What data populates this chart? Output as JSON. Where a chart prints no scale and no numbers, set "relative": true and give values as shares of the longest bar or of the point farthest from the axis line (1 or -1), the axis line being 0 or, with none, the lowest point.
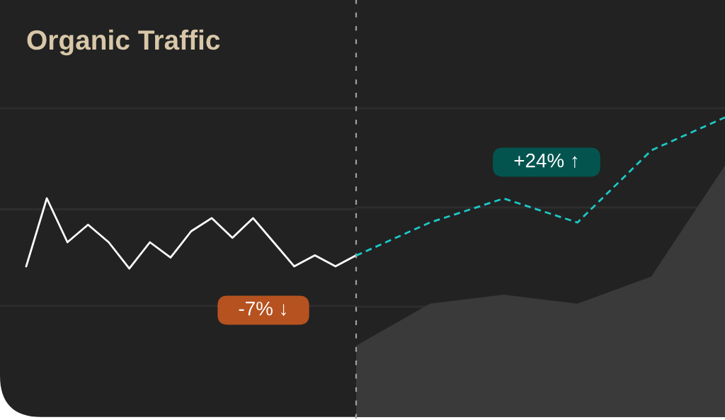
{
  "chart_data": [
    {
      "type": "line",
      "title": "Organic Traffic",
      "relative": true,
      "categories": [
        null,
        null,
        null,
        null,
        null,
        null,
        null,
        null,
        null,
        null,
        null,
        null,
        null,
        null,
        null,
        null,
        null
      ],
      "series": [
        {
          "color": "#ffffff",
          "line_style": "solid",
          "values": [
            0.69,
            1,
            0.8,
            0.88,
            0.8,
            0.68,
            0.8,
            0.73,
            0.85,
            0.91,
            0.82,
            0.91,
            0.8,
            0.69,
            0.74,
            0.69,
            0.74
          ]
        }
      ],
      "ref_lines": [
        {
          "axis": "y",
          "value": 0.51,
          "color": "#2d2d2d"
        },
        {
          "axis": "y",
          "value": 0.95,
          "color": "#2d2d2d"
        },
        {
          "axis": "y",
          "value": 1.41,
          "color": "#2d2d2d"
        }
      ],
      "annotations": [
        "-7% ↓"
      ]
    },
    {
      "type": "line",
      "relative": true,
      "categories": [
        null,
        null,
        null,
        null,
        null,
        null
      ],
      "series": [
        {
          "color": "#1ec8c8",
          "line_style": "dashed",
          "values": [
            0.54,
            0.65,
            0.73,
            0.65,
            0.89,
            1
          ]
        },
        {
          "type": "area",
          "color": "#3a3a3a",
          "values": [
            0.24,
            0.38,
            0.41,
            0.38,
            0.47,
            0.84
          ]
        }
      ],
      "ref_lines": [
        {
          "axis": "y",
          "value": 0.37,
          "color": "#2d2d2d"
        },
        {
          "axis": "y",
          "value": 0.7,
          "color": "#2d2d2d"
        },
        {
          "axis": "y",
          "value": 1.03,
          "color": "#2d2d2d"
        }
      ],
      "annotations": [
        "+24% ↑"
      ]
    }
  ]
}
